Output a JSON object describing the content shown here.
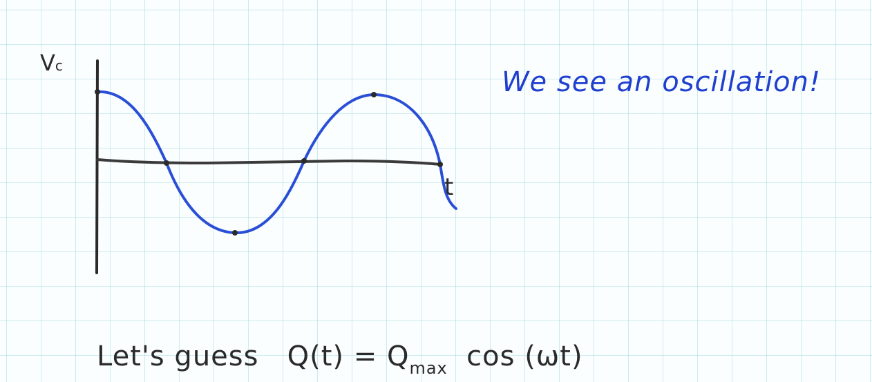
{
  "diagram": {
    "y_axis_label": "V",
    "y_axis_label_sub": "c",
    "x_axis_label": "t",
    "note": "We see an oscillation!",
    "guess": {
      "prefix": "Let's guess",
      "lhs": "Q(t) = Q",
      "sub": "max",
      "rhs": "cos (ωt)"
    }
  },
  "colors": {
    "curve": "#2a4fd6",
    "axis": "#2a2a2a",
    "note": "#1f3fcf",
    "grid": "#9fd8de"
  }
}
